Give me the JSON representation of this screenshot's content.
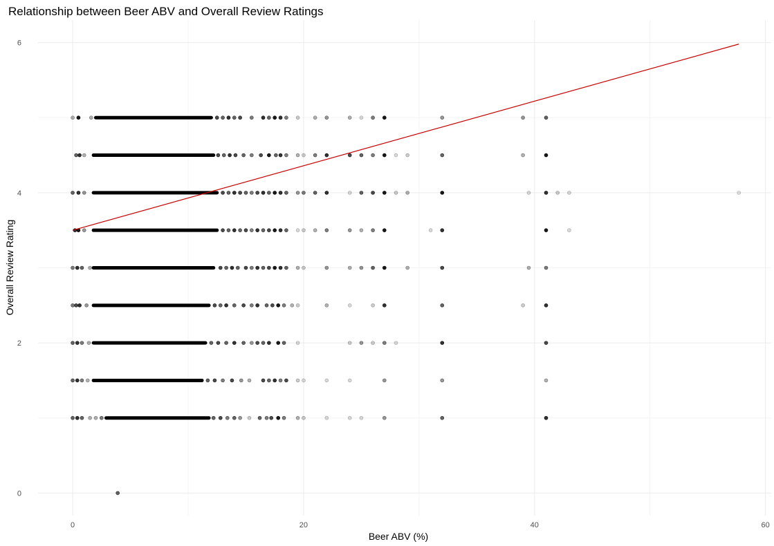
{
  "chart_data": {
    "type": "scatter",
    "title": "Relationship between Beer ABV and Overall Review Ratings",
    "xlabel": "Beer ABV (%)",
    "ylabel": "Overall Review Rating",
    "xlim": [
      -3.0,
      60.5
    ],
    "ylim": [
      -0.3,
      6.3
    ],
    "x_ticks": [
      0,
      20,
      40,
      60
    ],
    "x_tick_labels": [
      "0",
      "20",
      "40",
      "60"
    ],
    "x_minor_ticks": [
      10,
      30,
      50
    ],
    "y_ticks": [
      0,
      2,
      4,
      6
    ],
    "y_tick_labels": [
      "0",
      "2",
      "4",
      "6"
    ],
    "y_minor_ticks": [
      1,
      3,
      5
    ],
    "grid": true,
    "point_color": "#000000",
    "point_alpha": 0.15,
    "trend_line_color": "#cc0000",
    "trend_line": {
      "x": [
        0,
        57.7
      ],
      "y": [
        3.5,
        5.98
      ]
    },
    "dense_ranges": [
      {
        "y": 5.0,
        "x_from": 2.0,
        "x_to": 12.0
      },
      {
        "y": 4.5,
        "x_from": 1.8,
        "x_to": 12.2
      },
      {
        "y": 4.0,
        "x_from": 1.8,
        "x_to": 12.5
      },
      {
        "y": 3.5,
        "x_from": 1.8,
        "x_to": 12.5
      },
      {
        "y": 3.0,
        "x_from": 1.8,
        "x_to": 12.2
      },
      {
        "y": 2.5,
        "x_from": 1.8,
        "x_to": 11.8
      },
      {
        "y": 2.0,
        "x_from": 1.8,
        "x_to": 11.5
      },
      {
        "y": 1.5,
        "x_from": 1.8,
        "x_to": 11.2
      },
      {
        "y": 1.0,
        "x_from": 2.9,
        "x_to": 11.8
      }
    ],
    "points": [
      {
        "x": 0.0,
        "y": 5.0,
        "a": 0.3
      },
      {
        "x": 0.5,
        "y": 5.0,
        "a": 0.9
      },
      {
        "x": 1.6,
        "y": 5.0,
        "a": 0.3
      },
      {
        "x": 12.5,
        "y": 5.0,
        "a": 0.7
      },
      {
        "x": 13.0,
        "y": 5.0,
        "a": 0.6
      },
      {
        "x": 13.5,
        "y": 5.0,
        "a": 0.8
      },
      {
        "x": 14.0,
        "y": 5.0,
        "a": 0.6
      },
      {
        "x": 14.5,
        "y": 5.0,
        "a": 0.7
      },
      {
        "x": 15.5,
        "y": 5.0,
        "a": 0.5
      },
      {
        "x": 16.5,
        "y": 5.0,
        "a": 0.8
      },
      {
        "x": 17.0,
        "y": 5.0,
        "a": 0.6
      },
      {
        "x": 17.5,
        "y": 5.0,
        "a": 0.9
      },
      {
        "x": 18.0,
        "y": 5.0,
        "a": 0.8
      },
      {
        "x": 18.5,
        "y": 5.0,
        "a": 0.5
      },
      {
        "x": 19.5,
        "y": 5.0,
        "a": 0.2
      },
      {
        "x": 21.0,
        "y": 5.0,
        "a": 0.3
      },
      {
        "x": 22.0,
        "y": 5.0,
        "a": 0.4
      },
      {
        "x": 24.0,
        "y": 5.0,
        "a": 0.3
      },
      {
        "x": 25.0,
        "y": 5.0,
        "a": 0.15
      },
      {
        "x": 26.0,
        "y": 5.0,
        "a": 0.5
      },
      {
        "x": 27.0,
        "y": 5.0,
        "a": 0.9
      },
      {
        "x": 32.0,
        "y": 5.0,
        "a": 0.4
      },
      {
        "x": 39.0,
        "y": 5.0,
        "a": 0.4
      },
      {
        "x": 41.0,
        "y": 5.0,
        "a": 0.6
      },
      {
        "x": 0.3,
        "y": 4.5,
        "a": 0.6
      },
      {
        "x": 0.6,
        "y": 4.5,
        "a": 0.8
      },
      {
        "x": 1.0,
        "y": 4.5,
        "a": 0.3
      },
      {
        "x": 12.6,
        "y": 4.5,
        "a": 0.7
      },
      {
        "x": 13.1,
        "y": 4.5,
        "a": 0.6
      },
      {
        "x": 13.6,
        "y": 4.5,
        "a": 0.8
      },
      {
        "x": 14.1,
        "y": 4.5,
        "a": 0.7
      },
      {
        "x": 14.8,
        "y": 4.5,
        "a": 0.6
      },
      {
        "x": 15.5,
        "y": 4.5,
        "a": 0.5
      },
      {
        "x": 16.3,
        "y": 4.5,
        "a": 0.7
      },
      {
        "x": 17.0,
        "y": 4.5,
        "a": 0.9
      },
      {
        "x": 17.6,
        "y": 4.5,
        "a": 0.6
      },
      {
        "x": 18.0,
        "y": 4.5,
        "a": 0.8
      },
      {
        "x": 18.5,
        "y": 4.5,
        "a": 0.5
      },
      {
        "x": 19.5,
        "y": 4.5,
        "a": 0.3
      },
      {
        "x": 20.0,
        "y": 4.5,
        "a": 0.2
      },
      {
        "x": 21.0,
        "y": 4.5,
        "a": 0.5
      },
      {
        "x": 22.0,
        "y": 4.5,
        "a": 0.8
      },
      {
        "x": 24.0,
        "y": 4.5,
        "a": 0.7
      },
      {
        "x": 25.0,
        "y": 4.5,
        "a": 0.6
      },
      {
        "x": 26.0,
        "y": 4.5,
        "a": 0.5
      },
      {
        "x": 27.0,
        "y": 4.5,
        "a": 0.9
      },
      {
        "x": 28.0,
        "y": 4.5,
        "a": 0.15
      },
      {
        "x": 29.0,
        "y": 4.5,
        "a": 0.2
      },
      {
        "x": 32.0,
        "y": 4.5,
        "a": 0.6
      },
      {
        "x": 39.0,
        "y": 4.5,
        "a": 0.3
      },
      {
        "x": 41.0,
        "y": 4.5,
        "a": 0.9
      },
      {
        "x": 0.0,
        "y": 4.0,
        "a": 0.6
      },
      {
        "x": 0.5,
        "y": 4.0,
        "a": 0.8
      },
      {
        "x": 1.0,
        "y": 4.0,
        "a": 0.4
      },
      {
        "x": 13.0,
        "y": 4.0,
        "a": 0.7
      },
      {
        "x": 13.5,
        "y": 4.0,
        "a": 0.6
      },
      {
        "x": 14.0,
        "y": 4.0,
        "a": 0.8
      },
      {
        "x": 14.5,
        "y": 4.0,
        "a": 0.7
      },
      {
        "x": 15.0,
        "y": 4.0,
        "a": 0.6
      },
      {
        "x": 15.5,
        "y": 4.0,
        "a": 0.5
      },
      {
        "x": 16.0,
        "y": 4.0,
        "a": 0.7
      },
      {
        "x": 16.5,
        "y": 4.0,
        "a": 0.8
      },
      {
        "x": 17.0,
        "y": 4.0,
        "a": 0.6
      },
      {
        "x": 17.5,
        "y": 4.0,
        "a": 0.9
      },
      {
        "x": 18.0,
        "y": 4.0,
        "a": 0.8
      },
      {
        "x": 18.5,
        "y": 4.0,
        "a": 0.6
      },
      {
        "x": 19.5,
        "y": 4.0,
        "a": 0.4
      },
      {
        "x": 20.0,
        "y": 4.0,
        "a": 0.5
      },
      {
        "x": 21.0,
        "y": 4.0,
        "a": 0.6
      },
      {
        "x": 22.0,
        "y": 4.0,
        "a": 0.8
      },
      {
        "x": 24.0,
        "y": 4.0,
        "a": 0.15
      },
      {
        "x": 25.0,
        "y": 4.0,
        "a": 0.6
      },
      {
        "x": 26.0,
        "y": 4.0,
        "a": 0.7
      },
      {
        "x": 27.0,
        "y": 4.0,
        "a": 0.9
      },
      {
        "x": 28.0,
        "y": 4.0,
        "a": 0.2
      },
      {
        "x": 29.0,
        "y": 4.0,
        "a": 0.3
      },
      {
        "x": 32.0,
        "y": 4.0,
        "a": 0.9
      },
      {
        "x": 39.5,
        "y": 4.0,
        "a": 0.15
      },
      {
        "x": 41.0,
        "y": 4.0,
        "a": 0.8
      },
      {
        "x": 42.0,
        "y": 4.0,
        "a": 0.2
      },
      {
        "x": 43.0,
        "y": 4.0,
        "a": 0.15
      },
      {
        "x": 57.7,
        "y": 4.0,
        "a": 0.12
      },
      {
        "x": 0.2,
        "y": 3.5,
        "a": 0.8
      },
      {
        "x": 0.5,
        "y": 3.5,
        "a": 0.9
      },
      {
        "x": 1.0,
        "y": 3.5,
        "a": 0.4
      },
      {
        "x": 13.0,
        "y": 3.5,
        "a": 0.7
      },
      {
        "x": 13.5,
        "y": 3.5,
        "a": 0.6
      },
      {
        "x": 14.0,
        "y": 3.5,
        "a": 0.8
      },
      {
        "x": 14.5,
        "y": 3.5,
        "a": 0.6
      },
      {
        "x": 15.0,
        "y": 3.5,
        "a": 0.7
      },
      {
        "x": 15.5,
        "y": 3.5,
        "a": 0.5
      },
      {
        "x": 16.0,
        "y": 3.5,
        "a": 0.8
      },
      {
        "x": 16.5,
        "y": 3.5,
        "a": 0.6
      },
      {
        "x": 17.0,
        "y": 3.5,
        "a": 0.7
      },
      {
        "x": 17.5,
        "y": 3.5,
        "a": 0.9
      },
      {
        "x": 18.0,
        "y": 3.5,
        "a": 0.8
      },
      {
        "x": 18.5,
        "y": 3.5,
        "a": 0.6
      },
      {
        "x": 19.5,
        "y": 3.5,
        "a": 0.15
      },
      {
        "x": 20.0,
        "y": 3.5,
        "a": 0.2
      },
      {
        "x": 21.0,
        "y": 3.5,
        "a": 0.3
      },
      {
        "x": 22.0,
        "y": 3.5,
        "a": 0.5
      },
      {
        "x": 24.0,
        "y": 3.5,
        "a": 0.4
      },
      {
        "x": 25.0,
        "y": 3.5,
        "a": 0.3
      },
      {
        "x": 26.0,
        "y": 3.5,
        "a": 0.5
      },
      {
        "x": 27.0,
        "y": 3.5,
        "a": 0.9
      },
      {
        "x": 31.0,
        "y": 3.5,
        "a": 0.15
      },
      {
        "x": 32.0,
        "y": 3.5,
        "a": 0.8
      },
      {
        "x": 41.0,
        "y": 3.5,
        "a": 0.9
      },
      {
        "x": 43.0,
        "y": 3.5,
        "a": 0.15
      },
      {
        "x": 0.0,
        "y": 3.0,
        "a": 0.5
      },
      {
        "x": 0.4,
        "y": 3.0,
        "a": 0.8
      },
      {
        "x": 0.8,
        "y": 3.0,
        "a": 0.6
      },
      {
        "x": 1.5,
        "y": 3.0,
        "a": 0.3
      },
      {
        "x": 12.8,
        "y": 3.0,
        "a": 0.7
      },
      {
        "x": 13.3,
        "y": 3.0,
        "a": 0.6
      },
      {
        "x": 13.8,
        "y": 3.0,
        "a": 0.8
      },
      {
        "x": 14.3,
        "y": 3.0,
        "a": 0.6
      },
      {
        "x": 15.0,
        "y": 3.0,
        "a": 0.7
      },
      {
        "x": 15.5,
        "y": 3.0,
        "a": 0.5
      },
      {
        "x": 16.0,
        "y": 3.0,
        "a": 0.8
      },
      {
        "x": 16.5,
        "y": 3.0,
        "a": 0.6
      },
      {
        "x": 17.0,
        "y": 3.0,
        "a": 0.7
      },
      {
        "x": 17.5,
        "y": 3.0,
        "a": 0.9
      },
      {
        "x": 18.0,
        "y": 3.0,
        "a": 0.8
      },
      {
        "x": 18.5,
        "y": 3.0,
        "a": 0.6
      },
      {
        "x": 19.5,
        "y": 3.0,
        "a": 0.3
      },
      {
        "x": 20.0,
        "y": 3.0,
        "a": 0.2
      },
      {
        "x": 22.0,
        "y": 3.0,
        "a": 0.4
      },
      {
        "x": 24.0,
        "y": 3.0,
        "a": 0.3
      },
      {
        "x": 25.0,
        "y": 3.0,
        "a": 0.4
      },
      {
        "x": 26.0,
        "y": 3.0,
        "a": 0.6
      },
      {
        "x": 27.0,
        "y": 3.0,
        "a": 0.9
      },
      {
        "x": 29.0,
        "y": 3.0,
        "a": 0.3
      },
      {
        "x": 32.0,
        "y": 3.0,
        "a": 0.7
      },
      {
        "x": 39.5,
        "y": 3.0,
        "a": 0.3
      },
      {
        "x": 41.0,
        "y": 3.0,
        "a": 0.5
      },
      {
        "x": 0.0,
        "y": 2.5,
        "a": 0.5
      },
      {
        "x": 0.3,
        "y": 2.5,
        "a": 0.7
      },
      {
        "x": 0.6,
        "y": 2.5,
        "a": 0.8
      },
      {
        "x": 1.2,
        "y": 2.5,
        "a": 0.4
      },
      {
        "x": 12.3,
        "y": 2.5,
        "a": 0.7
      },
      {
        "x": 12.8,
        "y": 2.5,
        "a": 0.6
      },
      {
        "x": 13.3,
        "y": 2.5,
        "a": 0.8
      },
      {
        "x": 14.0,
        "y": 2.5,
        "a": 0.6
      },
      {
        "x": 14.8,
        "y": 2.5,
        "a": 0.7
      },
      {
        "x": 15.5,
        "y": 2.5,
        "a": 0.5
      },
      {
        "x": 16.0,
        "y": 2.5,
        "a": 0.8
      },
      {
        "x": 16.8,
        "y": 2.5,
        "a": 0.6
      },
      {
        "x": 17.3,
        "y": 2.5,
        "a": 0.7
      },
      {
        "x": 17.8,
        "y": 2.5,
        "a": 0.9
      },
      {
        "x": 18.3,
        "y": 2.5,
        "a": 0.5
      },
      {
        "x": 19.0,
        "y": 2.5,
        "a": 0.3
      },
      {
        "x": 19.5,
        "y": 2.5,
        "a": 0.2
      },
      {
        "x": 22.0,
        "y": 2.5,
        "a": 0.3
      },
      {
        "x": 24.0,
        "y": 2.5,
        "a": 0.15
      },
      {
        "x": 26.0,
        "y": 2.5,
        "a": 0.2
      },
      {
        "x": 27.0,
        "y": 2.5,
        "a": 0.8
      },
      {
        "x": 32.0,
        "y": 2.5,
        "a": 0.6
      },
      {
        "x": 39.0,
        "y": 2.5,
        "a": 0.2
      },
      {
        "x": 41.0,
        "y": 2.5,
        "a": 0.8
      },
      {
        "x": 0.0,
        "y": 2.0,
        "a": 0.6
      },
      {
        "x": 0.4,
        "y": 2.0,
        "a": 0.8
      },
      {
        "x": 0.8,
        "y": 2.0,
        "a": 0.5
      },
      {
        "x": 1.4,
        "y": 2.0,
        "a": 0.3
      },
      {
        "x": 12.0,
        "y": 2.0,
        "a": 0.6
      },
      {
        "x": 12.6,
        "y": 2.0,
        "a": 0.7
      },
      {
        "x": 13.3,
        "y": 2.0,
        "a": 0.6
      },
      {
        "x": 14.0,
        "y": 2.0,
        "a": 0.8
      },
      {
        "x": 14.8,
        "y": 2.0,
        "a": 0.6
      },
      {
        "x": 15.5,
        "y": 2.0,
        "a": 0.4
      },
      {
        "x": 16.0,
        "y": 2.0,
        "a": 0.7
      },
      {
        "x": 16.5,
        "y": 2.0,
        "a": 0.6
      },
      {
        "x": 17.0,
        "y": 2.0,
        "a": 0.8
      },
      {
        "x": 17.8,
        "y": 2.0,
        "a": 0.9
      },
      {
        "x": 18.3,
        "y": 2.0,
        "a": 0.6
      },
      {
        "x": 19.5,
        "y": 2.0,
        "a": 0.15
      },
      {
        "x": 24.0,
        "y": 2.0,
        "a": 0.2
      },
      {
        "x": 25.0,
        "y": 2.0,
        "a": 0.4
      },
      {
        "x": 26.0,
        "y": 2.0,
        "a": 0.2
      },
      {
        "x": 27.0,
        "y": 2.0,
        "a": 0.5
      },
      {
        "x": 28.0,
        "y": 2.0,
        "a": 0.15
      },
      {
        "x": 32.0,
        "y": 2.0,
        "a": 0.8
      },
      {
        "x": 41.0,
        "y": 2.0,
        "a": 0.7
      },
      {
        "x": 0.0,
        "y": 1.5,
        "a": 0.6
      },
      {
        "x": 0.4,
        "y": 1.5,
        "a": 0.8
      },
      {
        "x": 0.8,
        "y": 1.5,
        "a": 0.5
      },
      {
        "x": 1.3,
        "y": 1.5,
        "a": 0.3
      },
      {
        "x": 11.7,
        "y": 1.5,
        "a": 0.6
      },
      {
        "x": 12.3,
        "y": 1.5,
        "a": 0.7
      },
      {
        "x": 13.0,
        "y": 1.5,
        "a": 0.5
      },
      {
        "x": 13.8,
        "y": 1.5,
        "a": 0.7
      },
      {
        "x": 14.6,
        "y": 1.5,
        "a": 0.4
      },
      {
        "x": 15.3,
        "y": 1.5,
        "a": 0.3
      },
      {
        "x": 16.5,
        "y": 1.5,
        "a": 0.7
      },
      {
        "x": 17.0,
        "y": 1.5,
        "a": 0.6
      },
      {
        "x": 17.5,
        "y": 1.5,
        "a": 0.8
      },
      {
        "x": 18.0,
        "y": 1.5,
        "a": 0.5
      },
      {
        "x": 18.5,
        "y": 1.5,
        "a": 0.7
      },
      {
        "x": 19.5,
        "y": 1.5,
        "a": 0.2
      },
      {
        "x": 20.0,
        "y": 1.5,
        "a": 0.15
      },
      {
        "x": 22.0,
        "y": 1.5,
        "a": 0.15
      },
      {
        "x": 24.0,
        "y": 1.5,
        "a": 0.15
      },
      {
        "x": 27.0,
        "y": 1.5,
        "a": 0.4
      },
      {
        "x": 32.0,
        "y": 1.5,
        "a": 0.4
      },
      {
        "x": 41.0,
        "y": 1.5,
        "a": 0.3
      },
      {
        "x": 0.0,
        "y": 1.0,
        "a": 0.6
      },
      {
        "x": 0.4,
        "y": 1.0,
        "a": 0.8
      },
      {
        "x": 0.8,
        "y": 1.0,
        "a": 0.6
      },
      {
        "x": 1.5,
        "y": 1.0,
        "a": 0.3
      },
      {
        "x": 2.0,
        "y": 1.0,
        "a": 0.3
      },
      {
        "x": 2.5,
        "y": 1.0,
        "a": 0.5
      },
      {
        "x": 12.2,
        "y": 1.0,
        "a": 0.6
      },
      {
        "x": 12.8,
        "y": 1.0,
        "a": 0.7
      },
      {
        "x": 13.4,
        "y": 1.0,
        "a": 0.5
      },
      {
        "x": 14.0,
        "y": 1.0,
        "a": 0.6
      },
      {
        "x": 14.5,
        "y": 1.0,
        "a": 0.4
      },
      {
        "x": 15.3,
        "y": 1.0,
        "a": 0.2
      },
      {
        "x": 16.2,
        "y": 1.0,
        "a": 0.6
      },
      {
        "x": 16.8,
        "y": 1.0,
        "a": 0.5
      },
      {
        "x": 17.2,
        "y": 1.0,
        "a": 0.7
      },
      {
        "x": 17.8,
        "y": 1.0,
        "a": 0.9
      },
      {
        "x": 18.3,
        "y": 1.0,
        "a": 0.5
      },
      {
        "x": 19.5,
        "y": 1.0,
        "a": 0.3
      },
      {
        "x": 20.0,
        "y": 1.0,
        "a": 0.2
      },
      {
        "x": 22.0,
        "y": 1.0,
        "a": 0.15
      },
      {
        "x": 24.0,
        "y": 1.0,
        "a": 0.15
      },
      {
        "x": 25.0,
        "y": 1.0,
        "a": 0.15
      },
      {
        "x": 27.0,
        "y": 1.0,
        "a": 0.4
      },
      {
        "x": 32.0,
        "y": 1.0,
        "a": 0.6
      },
      {
        "x": 41.0,
        "y": 1.0,
        "a": 0.8
      },
      {
        "x": 3.9,
        "y": 0.0,
        "a": 0.6
      }
    ]
  }
}
